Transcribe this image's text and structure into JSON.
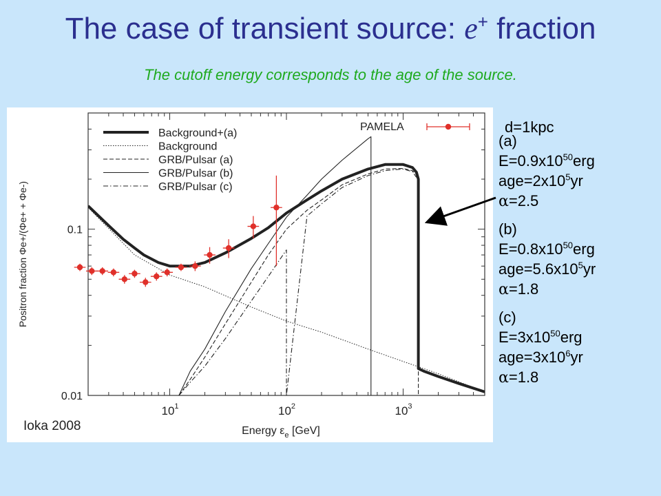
{
  "slide": {
    "title_text": "The case of transient source: ",
    "title_symbol": "e",
    "title_symbol_sup": "+",
    "title_suffix": " fraction",
    "subtitle": "The cutoff energy corresponds to the age of the source.",
    "distance": "d=1kpc",
    "source_label": "Ioka 2008"
  },
  "params": {
    "a": {
      "label": "(a)",
      "E_pre": "E=0.9x10",
      "E_exp": "50",
      "E_unit": "erg",
      "age_pre": "age=2x10",
      "age_exp": "5",
      "age_unit": "yr",
      "alpha_sym": "α",
      "alpha_val": "=2.5"
    },
    "b": {
      "label": "(b)",
      "E_pre": "E=0.8x10",
      "E_exp": "50",
      "E_unit": "erg",
      "age_pre": "age=5.6x10",
      "age_exp": "5",
      "age_unit": "yr",
      "alpha_sym": "α",
      "alpha_val": "=1.8"
    },
    "c": {
      "label": "(c)",
      "E_pre": "E=3x10",
      "E_exp": "50",
      "E_unit": "erg",
      "age_pre": "age=3x10",
      "age_exp": "6",
      "age_unit": "yr",
      "alpha_sym": "α",
      "alpha_val": "=1.8"
    }
  },
  "chart_data": {
    "type": "line",
    "xlabel": "Energy ε",
    "xlabel_sub": "e",
    "xlabel_unit": " [GeV]",
    "ylabel": "Positron fraction Φe+/(Φe+ + Φe-)",
    "xscale": "log",
    "yscale": "log",
    "xlim": [
      2,
      5000
    ],
    "ylim": [
      0.01,
      0.5
    ],
    "x_ticks": [
      {
        "value": 10,
        "base": "10",
        "exp": "1"
      },
      {
        "value": 100,
        "base": "10",
        "exp": "2"
      },
      {
        "value": 1000,
        "base": "10",
        "exp": "3"
      }
    ],
    "y_ticks": [
      {
        "value": 0.01,
        "label": "0.01"
      },
      {
        "value": 0.1,
        "label": "0.1"
      }
    ],
    "legend_position": "top-left",
    "colors": {
      "pamela": "#e0302a",
      "lines": "#222222",
      "arrow": "#000000"
    },
    "series": [
      {
        "name": "Background+(a)",
        "style": "thick",
        "x": [
          2,
          3,
          4,
          5,
          6,
          8,
          10,
          15,
          20,
          30,
          50,
          70,
          100,
          150,
          200,
          300,
          500,
          700,
          1000,
          1200,
          1300,
          1350,
          1350,
          1500,
          2000,
          3000,
          5000
        ],
        "y": [
          0.138,
          0.105,
          0.087,
          0.077,
          0.07,
          0.063,
          0.06,
          0.06,
          0.063,
          0.072,
          0.088,
          0.102,
          0.125,
          0.15,
          0.17,
          0.2,
          0.23,
          0.245,
          0.245,
          0.235,
          0.22,
          0.2,
          0.0145,
          0.014,
          0.013,
          0.0118,
          0.0105
        ]
      },
      {
        "name": "Background",
        "style": "dotted",
        "x": [
          2,
          5,
          10,
          20,
          50,
          100,
          200,
          500,
          1000,
          2000,
          5000
        ],
        "y": [
          0.135,
          0.07,
          0.053,
          0.045,
          0.034,
          0.028,
          0.024,
          0.019,
          0.016,
          0.0135,
          0.0105
        ]
      },
      {
        "name": "GRB/Pulsar (a)",
        "style": "dashed",
        "x": [
          12,
          15,
          20,
          30,
          50,
          70,
          100,
          150,
          200,
          300,
          500,
          700,
          1000,
          1200,
          1300,
          1350,
          1350
        ],
        "y": [
          0.01,
          0.0125,
          0.017,
          0.027,
          0.048,
          0.07,
          0.1,
          0.13,
          0.15,
          0.185,
          0.215,
          0.23,
          0.232,
          0.225,
          0.212,
          0.198,
          0.01
        ]
      },
      {
        "name": "GRB/Pulsar (b)",
        "style": "solid",
        "x": [
          12,
          15,
          20,
          30,
          50,
          70,
          100,
          150,
          200,
          300,
          500,
          530,
          530
        ],
        "y": [
          0.01,
          0.014,
          0.019,
          0.032,
          0.058,
          0.082,
          0.118,
          0.16,
          0.2,
          0.26,
          0.35,
          0.36,
          0.01
        ]
      },
      {
        "name": "GRB/Pulsar (c)",
        "style": "dashdot",
        "x": [
          12,
          15,
          20,
          30,
          50,
          70,
          100,
          100,
          150,
          200,
          300,
          500,
          700,
          1000,
          1200,
          1300
        ],
        "y": [
          0.01,
          0.012,
          0.015,
          0.022,
          0.037,
          0.052,
          0.075,
          0.01,
          0.12,
          0.142,
          0.178,
          0.21,
          0.225,
          0.23,
          0.222,
          0.205
        ]
      }
    ],
    "pamela": {
      "name": "PAMELA",
      "points": [
        {
          "x": 1.7,
          "y": 0.059,
          "elo": 0.062,
          "ehi": 0.062
        },
        {
          "x": 2.15,
          "y": 0.056,
          "elo": 0.059,
          "ehi": 0.059
        },
        {
          "x": 2.65,
          "y": 0.056,
          "elo": 0.059,
          "ehi": 0.059
        },
        {
          "x": 3.3,
          "y": 0.055,
          "elo": 0.058,
          "ehi": 0.058
        },
        {
          "x": 4.1,
          "y": 0.05,
          "elo": 0.053,
          "ehi": 0.053
        },
        {
          "x": 5.0,
          "y": 0.054,
          "elo": 0.057,
          "ehi": 0.057
        },
        {
          "x": 6.2,
          "y": 0.048,
          "elo": 0.051,
          "ehi": 0.051
        },
        {
          "x": 7.7,
          "y": 0.052,
          "elo": 0.055,
          "ehi": 0.055
        },
        {
          "x": 9.5,
          "y": 0.055,
          "elo": 0.058,
          "ehi": 0.058
        },
        {
          "x": 12.5,
          "y": 0.059,
          "elo": 0.062,
          "ehi": 0.062
        },
        {
          "x": 16.5,
          "y": 0.06,
          "elo": 0.064,
          "ehi": 0.064
        },
        {
          "x": 22,
          "y": 0.07,
          "elo": 0.078,
          "ehi": 0.078
        },
        {
          "x": 32,
          "y": 0.077,
          "elo": 0.087,
          "ehi": 0.087
        },
        {
          "x": 52,
          "y": 0.104,
          "elo": 0.12,
          "ehi": 0.12
        },
        {
          "x": 82,
          "y": 0.135,
          "elo": 0.21,
          "ehi": 0.21
        }
      ]
    },
    "annotation_arrow": {
      "target_series": "Background+(a)",
      "x": 1350,
      "y": 0.11
    }
  }
}
